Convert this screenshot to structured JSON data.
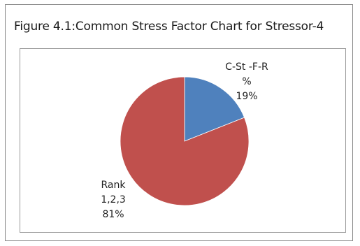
{
  "chart_data": {
    "type": "pie",
    "title": "Figure 4.1:Common Stress Factor Chart for Stressor-4",
    "slices": [
      {
        "label_lines": [
          "C-St -F-R",
          "%"
        ],
        "value": 19,
        "percent_label": "19%",
        "color": "#4f81bd"
      },
      {
        "label_lines": [
          "Rank",
          "1,2,3"
        ],
        "value": 81,
        "percent_label": "81%",
        "color": "#c0504d"
      }
    ],
    "legend": "none",
    "start_angle_deg": 0,
    "direction": "clockwise"
  }
}
